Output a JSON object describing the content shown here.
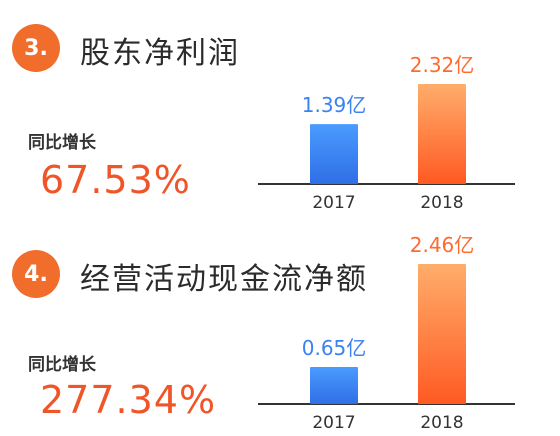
{
  "sections": [
    {
      "number": "3.",
      "title": "股东净利润",
      "growth_label": "同比增长",
      "growth_value": "67.53%"
    },
    {
      "number": "4.",
      "title": "经营活动现金流净额",
      "growth_label": "同比增长",
      "growth_value": "277.34%"
    }
  ],
  "colors": {
    "accent": "#f06d2c",
    "growth_text": "#f0552a",
    "bar_2017": "#3b82f0",
    "bar_2018": "#ff6a30"
  },
  "chart_data": [
    {
      "type": "bar",
      "categories": [
        "2017",
        "2018"
      ],
      "values": [
        1.39,
        2.32
      ],
      "data_labels": [
        "1.39亿",
        "2.32亿"
      ],
      "title": "股东净利润",
      "xlabel": "",
      "ylabel": "",
      "ylim": [
        0,
        2.32
      ],
      "grid": false
    },
    {
      "type": "bar",
      "categories": [
        "2017",
        "2018"
      ],
      "values": [
        0.65,
        2.46
      ],
      "data_labels": [
        "0.65亿",
        "2.46亿"
      ],
      "title": "经营活动现金流净额",
      "xlabel": "",
      "ylabel": "",
      "ylim": [
        0,
        2.46
      ],
      "grid": false
    }
  ]
}
